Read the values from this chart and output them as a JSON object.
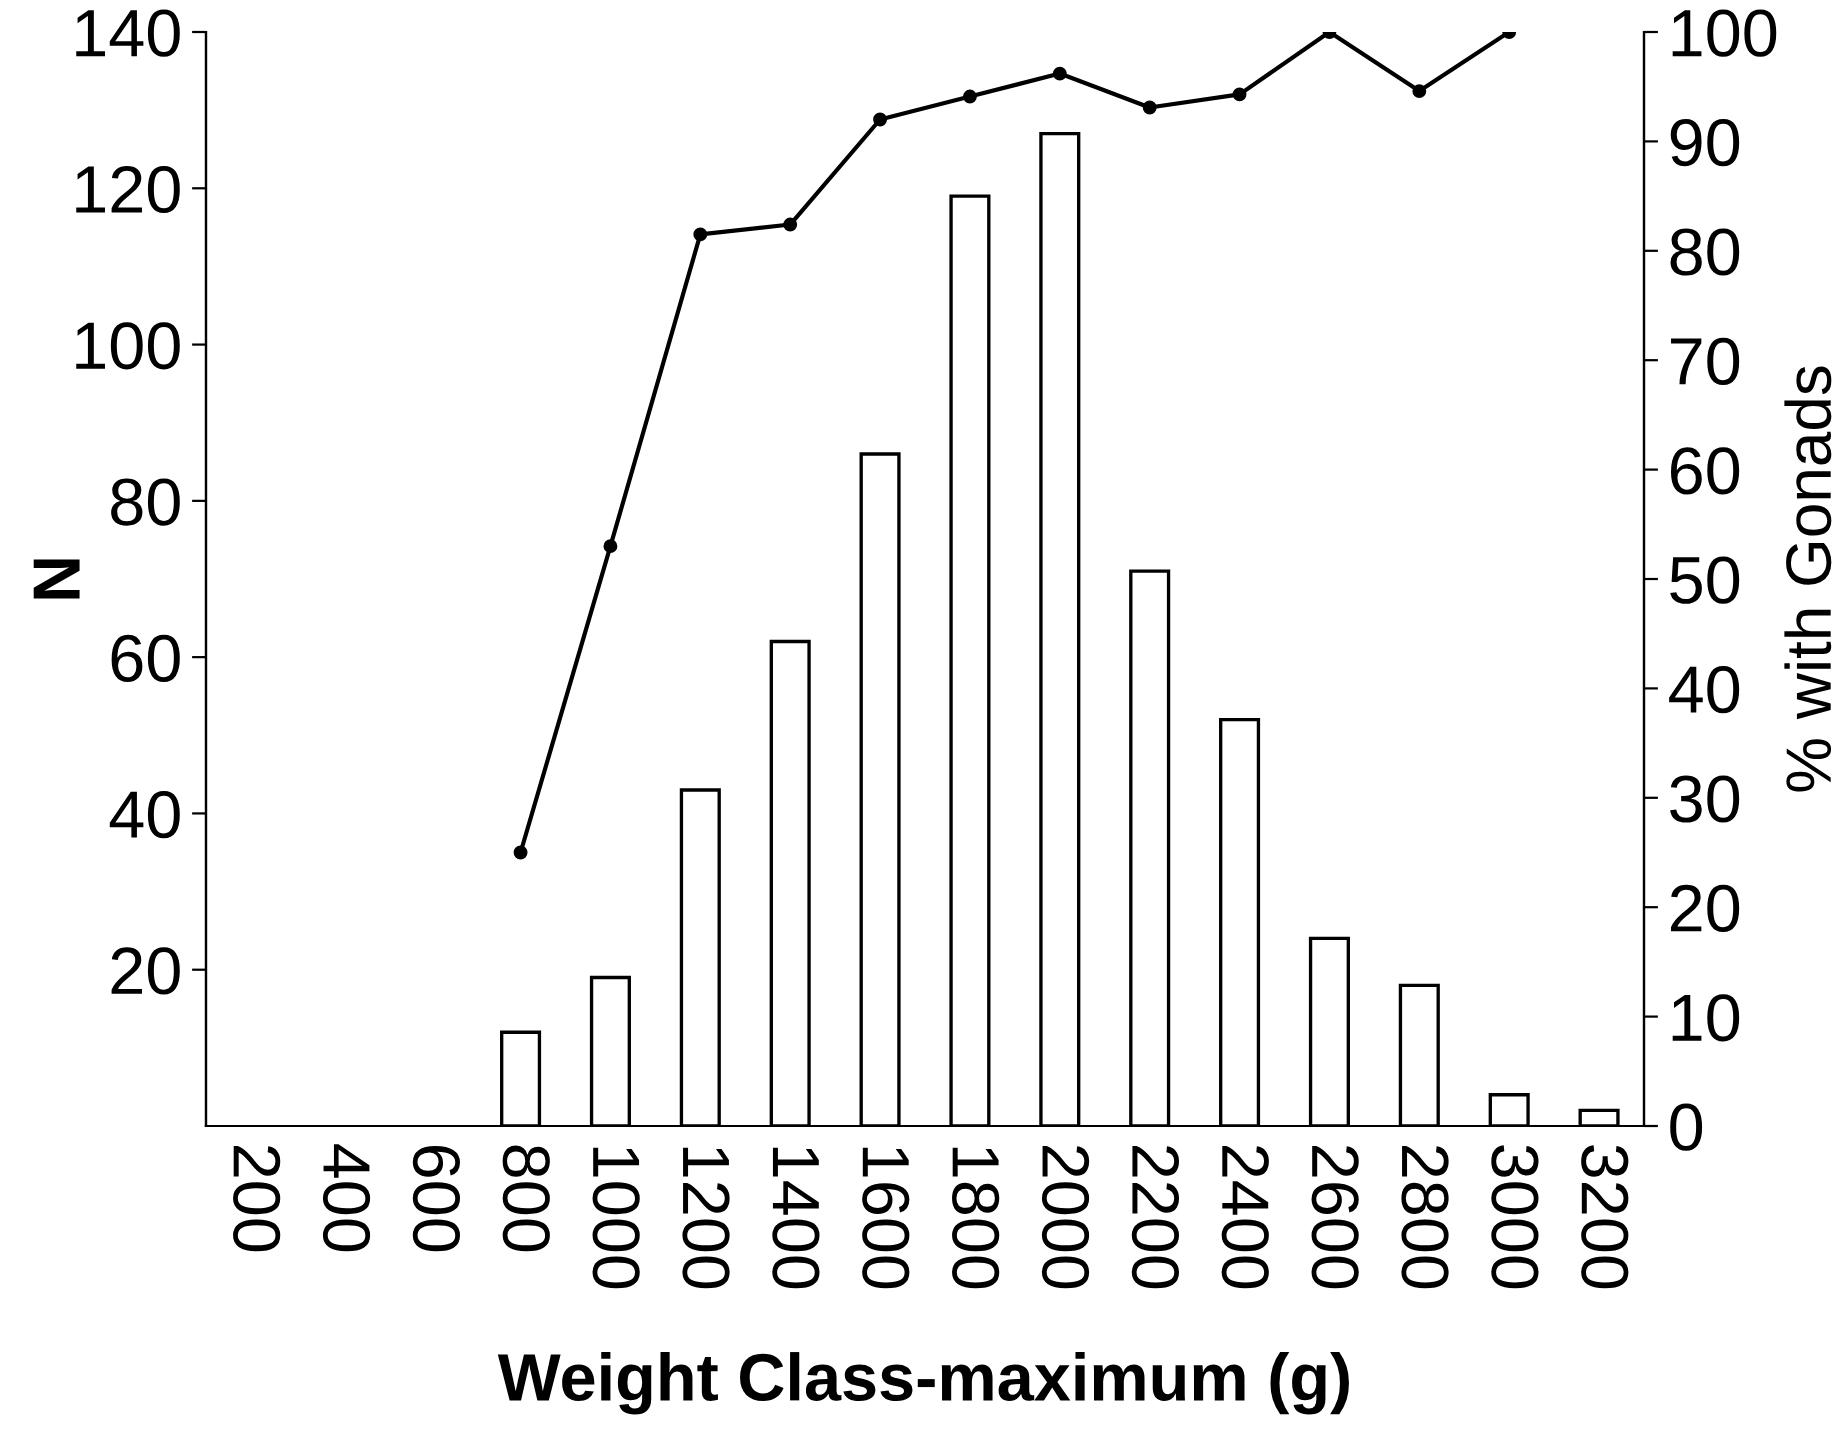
{
  "chart_data": {
    "type": "bar",
    "xlabel": "Weight Class-maximum (g)",
    "ylabel": "N",
    "y2label": "% with Gonads",
    "categories": [
      "200",
      "400",
      "600",
      "800",
      "1000",
      "1200",
      "1400",
      "1600",
      "1800",
      "2000",
      "2200",
      "2400",
      "2600",
      "2800",
      "3000",
      "3200"
    ],
    "series": [
      {
        "color": "#ffffff",
        "values": [
          0,
          0,
          0,
          12,
          19,
          43,
          62,
          86,
          119,
          127,
          71,
          52,
          24,
          18,
          4,
          2
        ]
      },
      {
        "type": "line",
        "axis": "y2",
        "color": "#000000",
        "marker": "circle",
        "values": [
          null,
          null,
          null,
          25,
          53,
          81.5,
          82.4,
          92,
          94.1,
          96.2,
          93.1,
          94.3,
          100,
          94.6,
          100,
          null
        ]
      }
    ],
    "ylim": [
      0,
      140
    ],
    "yticks": [
      20,
      40,
      60,
      80,
      100,
      120,
      140
    ],
    "y2lim": [
      0,
      100
    ],
    "y2ticks": [
      0,
      10,
      20,
      30,
      40,
      50,
      60,
      70,
      80,
      90,
      100
    ],
    "grid": false,
    "legend": false
  }
}
